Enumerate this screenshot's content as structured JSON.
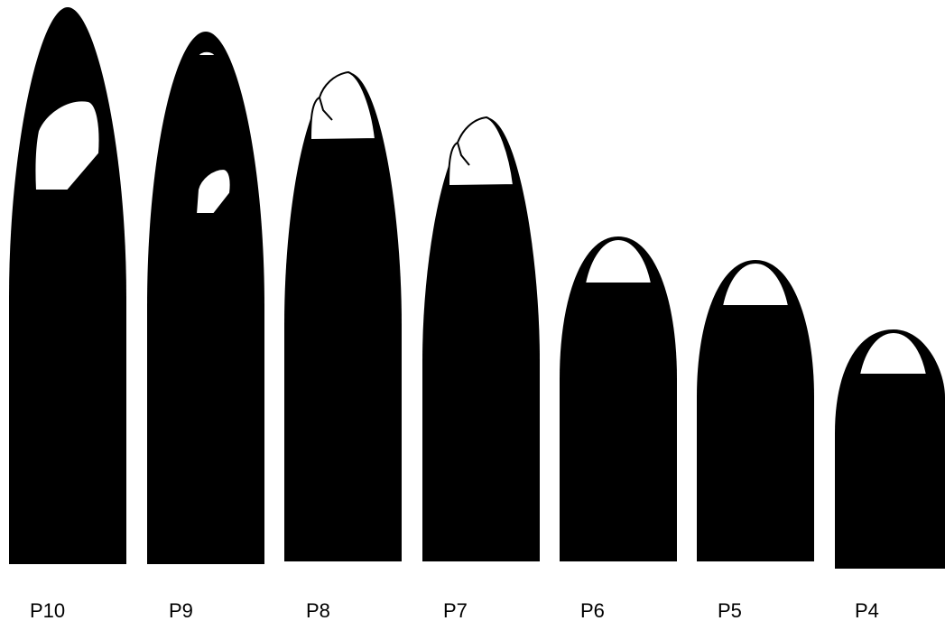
{
  "labels": [
    "P10",
    "P9",
    "P8",
    "P7",
    "P6",
    "P5",
    "P4"
  ]
}
